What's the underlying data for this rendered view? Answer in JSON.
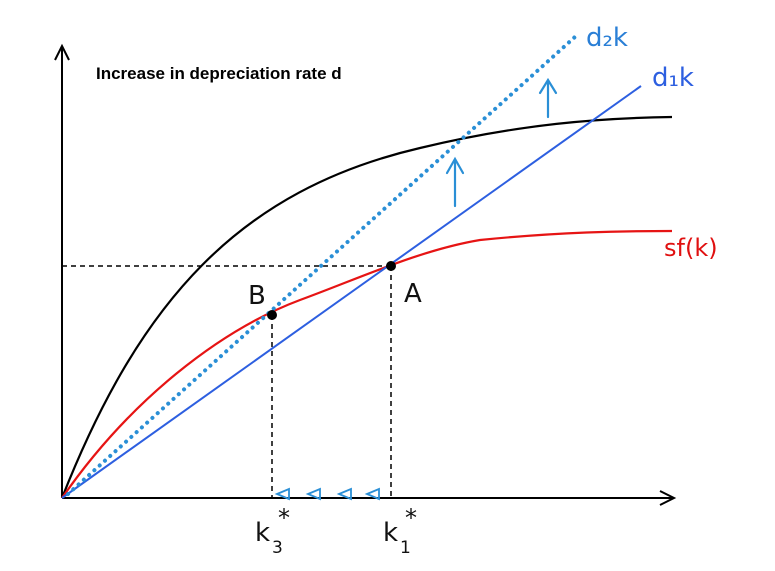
{
  "title": "Increase in depreciation rate d",
  "curves": {
    "d2k_label": "d₂k",
    "d1k_label": "d₁k",
    "sfk_label": "sf(k)"
  },
  "points": {
    "a_label": "A",
    "b_label": "B"
  },
  "axis": {
    "k3_label": "k",
    "k3_sub": "3",
    "k3_star": "*",
    "k1_label": "k",
    "k1_sub": "1",
    "k1_star": "*"
  },
  "colors": {
    "black_curve": "#000000",
    "sfk_curve": "#e61414",
    "d1k_line": "#2d5fe0",
    "d2k_line": "#2a8fd6",
    "guides": "#000000"
  },
  "icons": {
    "up_arrow": "up-arrow-icon",
    "left_triangle": "left-triangle-icon"
  }
}
